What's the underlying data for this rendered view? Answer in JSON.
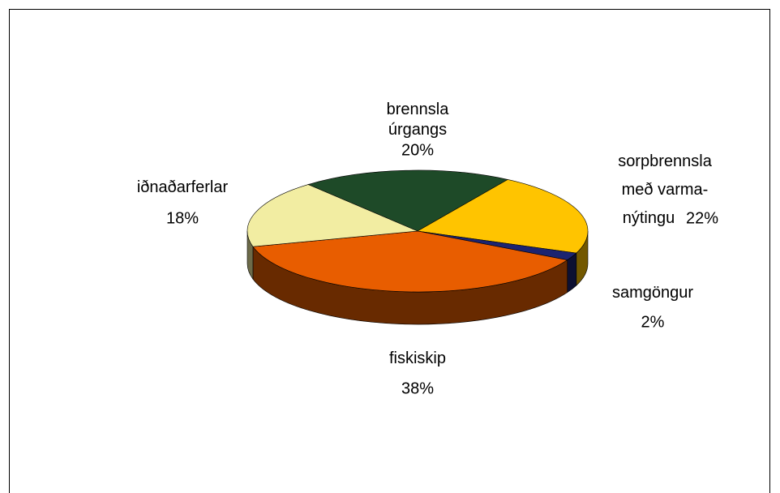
{
  "chart_data": {
    "type": "pie3d",
    "categories": [
      "brennsla\núrgangs",
      "sorpbrennsla\nmeð varma-\nnýtingu",
      "samgöngur",
      "fiskiskip",
      "iðnaðarferlar"
    ],
    "values": [
      20,
      22,
      2,
      38,
      18
    ],
    "value_labels": [
      "20%",
      "22%",
      "2%",
      "38%",
      "18%"
    ],
    "colors": [
      "#1e4a28",
      "#ffc400",
      "#1c2470",
      "#e85d00",
      "#f2eda2"
    ]
  }
}
